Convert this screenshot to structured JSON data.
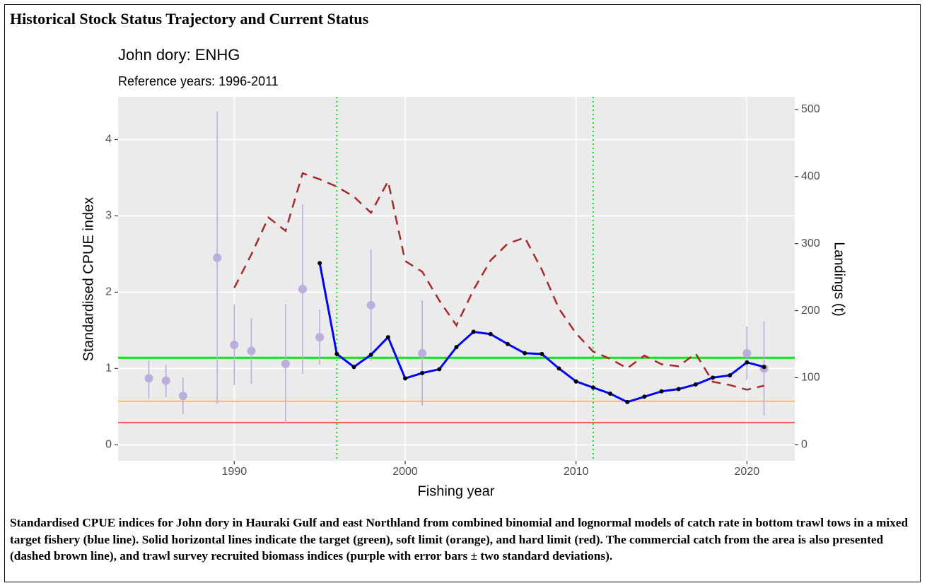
{
  "header": {
    "title": "Historical Stock Status Trajectory and Current Status"
  },
  "chart_data": {
    "type": "line",
    "title": "John dory: ENHG",
    "subtitle": "Reference years: 1996-2011",
    "x_label": "Fishing year",
    "y_label": "Standardised CPUE index",
    "y2_label": "Landings (t)",
    "xlim": [
      1983.2,
      2022.8
    ],
    "xticks": [
      1990,
      2000,
      2010,
      2020
    ],
    "ylim": [
      -0.21,
      4.56
    ],
    "yticks": [
      0,
      1,
      2,
      3,
      4
    ],
    "y2lim": [
      -24,
      519
    ],
    "y2ticks": [
      0,
      100,
      200,
      300,
      400,
      500
    ],
    "grid": true,
    "hlines": [
      {
        "value": 1.14,
        "color": "#00ee00",
        "width": 3
      },
      {
        "value": 0.57,
        "color": "#ffa500",
        "width": 1.2
      },
      {
        "value": 0.29,
        "color": "#ff0000",
        "width": 1.2
      }
    ],
    "vlines": [
      {
        "value": 1996,
        "color": "#00ee00"
      },
      {
        "value": 2011,
        "color": "#00ee00"
      }
    ],
    "series": [
      {
        "kind": "line",
        "color": "#0000ff",
        "marker_color": "#000000",
        "dashed": false,
        "x": [
          1995,
          1996,
          1997,
          1998,
          1999,
          2000,
          2001,
          2002,
          2003,
          2004,
          2005,
          2006,
          2007,
          2008,
          2009,
          2010,
          2011,
          2012,
          2013,
          2014,
          2015,
          2016,
          2017,
          2018,
          2019,
          2020,
          2021
        ],
        "values": [
          2.38,
          1.19,
          1.02,
          1.18,
          1.41,
          0.87,
          0.94,
          0.99,
          1.28,
          1.48,
          1.45,
          1.32,
          1.2,
          1.19,
          1.0,
          0.83,
          0.75,
          0.67,
          0.56,
          0.63,
          0.7,
          0.73,
          0.79,
          0.88,
          0.91,
          1.08,
          1.02
        ]
      },
      {
        "kind": "line",
        "color": "#a52a2a",
        "dashed": true,
        "axis": "y2",
        "x": [
          1990,
          1991,
          1992,
          1993,
          1994,
          1995,
          1996,
          1997,
          1998,
          1999,
          2000,
          2001,
          2002,
          2003,
          2004,
          2005,
          2006,
          2007,
          2008,
          2009,
          2010,
          2011,
          2012,
          2013,
          2014,
          2015,
          2016,
          2017,
          2018,
          2019,
          2020,
          2021
        ],
        "values": [
          234,
          284,
          339,
          319,
          405,
          396,
          385,
          370,
          346,
          393,
          274,
          258,
          215,
          178,
          231,
          275,
          300,
          309,
          261,
          203,
          166,
          139,
          128,
          114,
          133,
          120,
          117,
          136,
          94,
          89,
          82,
          88
        ]
      },
      {
        "kind": "errorbar",
        "color": "#bcaedc",
        "x": [
          1985,
          1986,
          1987,
          1989,
          1990,
          1991,
          1993,
          1994,
          1995,
          1998,
          2001,
          2020,
          2021
        ],
        "values": [
          0.87,
          0.84,
          0.64,
          2.45,
          1.31,
          1.23,
          1.06,
          2.04,
          1.41,
          1.83,
          1.2,
          1.2,
          1.0
        ],
        "lower": [
          0.6,
          0.62,
          0.4,
          0.54,
          0.78,
          0.8,
          0.28,
          0.93,
          1.05,
          1.1,
          0.51,
          0.85,
          0.38
        ],
        "upper": [
          1.1,
          1.05,
          0.88,
          4.37,
          1.84,
          1.66,
          1.84,
          3.15,
          1.77,
          2.56,
          1.89,
          1.55,
          1.62
        ]
      }
    ]
  },
  "caption": "Standardised CPUE indices for John dory in Hauraki Gulf and east Northland from combined binomial and lognormal models of catch rate in bottom trawl tows in a mixed target fishery (blue line). Solid horizontal lines indicate the target (green), soft limit (orange), and hard limit (red). The commercial catch from the area is also presented (dashed brown line), and trawl survey recruited biomass indices (purple with error bars ± two standard deviations)."
}
